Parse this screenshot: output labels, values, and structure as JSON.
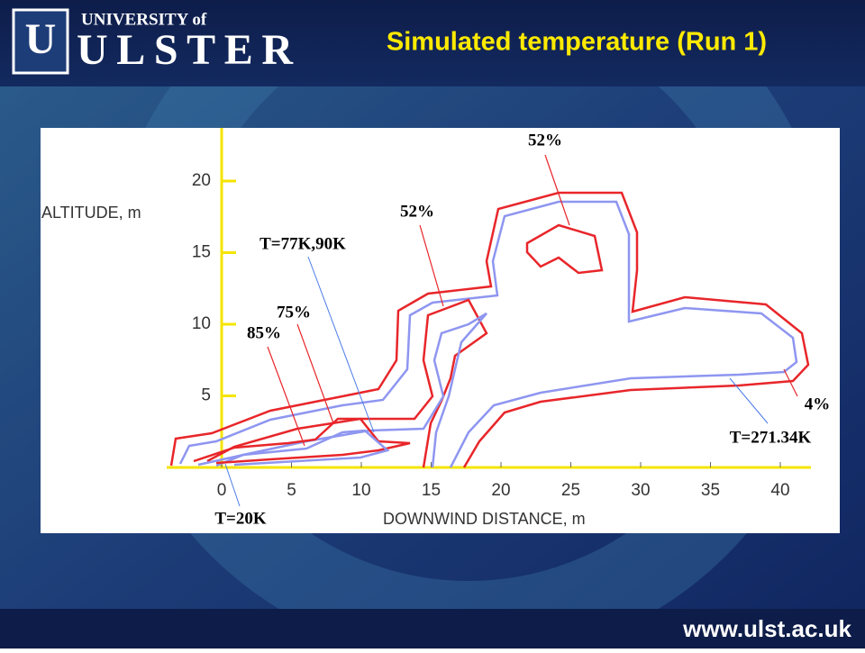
{
  "header": {
    "logo_top": "UNIVERSITY of",
    "logo_bottom": "ULSTER",
    "title": "Simulated temperature (Run 1)"
  },
  "figure": {
    "y_axis_label": "ALTITUDE, m",
    "x_axis_label": "DOWNWIND DISTANCE, m",
    "y_ticks": [
      20,
      15,
      10,
      5
    ],
    "x_ticks": [
      0,
      5,
      10,
      15,
      20,
      25,
      30,
      35,
      40
    ],
    "annotations": [
      "52%",
      "52%",
      "T=77K,90K",
      "75%",
      "85%",
      "4%",
      "T=271.34K",
      "T=20K"
    ]
  },
  "footer": {
    "url": "www.ulst.ac.uk"
  }
}
